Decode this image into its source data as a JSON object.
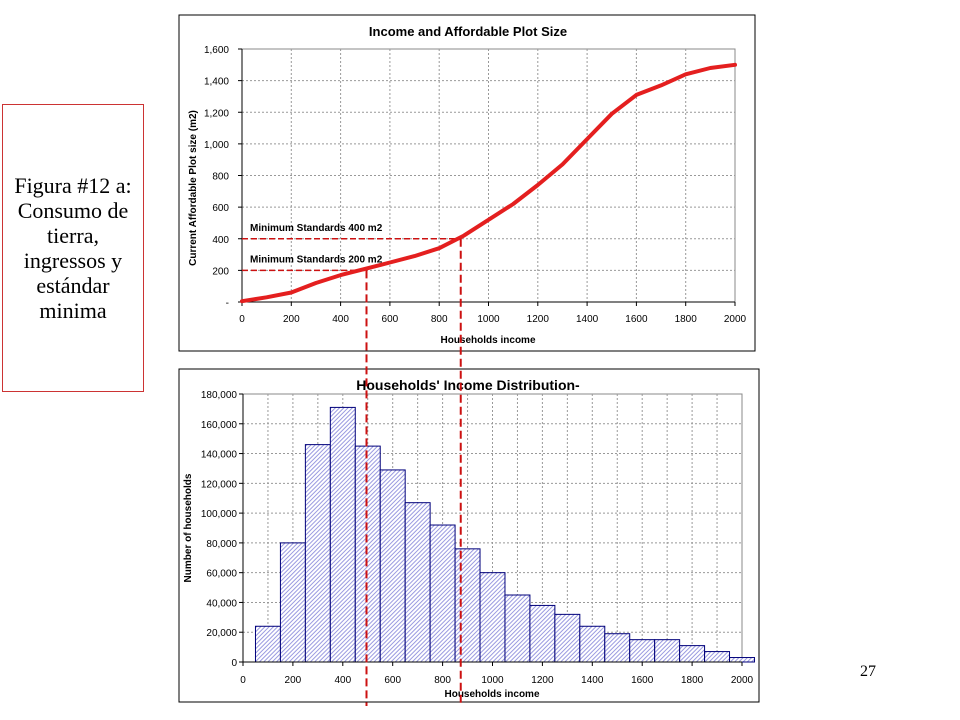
{
  "caption": {
    "text": "Figura #12 a: Consumo de tierra, ingressos y estándar minima"
  },
  "page_number": "27",
  "colors": {
    "curve": "#e41f1f",
    "bars": "#9a9ae0",
    "bar_border": "#00007a",
    "guide": "#cc1111",
    "plot_bg": "#ffffff",
    "grid": "#999999"
  },
  "chart_data": [
    {
      "type": "line",
      "title": "Income and Affordable  Plot Size",
      "xlabel": "Households income",
      "ylabel": "Current Affordable Plot size (m2)",
      "xlim": [
        0,
        2000
      ],
      "ylim": [
        0,
        1600
      ],
      "x_ticks": [
        "0",
        "200",
        "400",
        "600",
        "800",
        "1000",
        "1200",
        "1400",
        "1600",
        "1800",
        "2000"
      ],
      "y_ticks": [
        "-",
        "200",
        "400",
        "600",
        "800",
        "1,000",
        "1,200",
        "1,400",
        "1,600"
      ],
      "grid": true,
      "series": [
        {
          "x": [
            0,
            100,
            200,
            300,
            400,
            500,
            600,
            700,
            800,
            900,
            1000,
            1100,
            1200,
            1300,
            1400,
            1500,
            1600,
            1700,
            1800,
            1900,
            2000
          ],
          "y": [
            5,
            30,
            60,
            120,
            170,
            210,
            250,
            290,
            340,
            420,
            520,
            620,
            740,
            870,
            1030,
            1190,
            1310,
            1370,
            1440,
            1480,
            1500
          ]
        }
      ],
      "annotations": [
        {
          "text": "Minimum Standards 400 m2",
          "level": 400,
          "income": 880
        },
        {
          "text": "Minimum Standards 200 m2",
          "level": 200,
          "income": 500
        }
      ]
    },
    {
      "type": "bar",
      "title": "Households' Income Distribution-",
      "xlabel": "Households income",
      "ylabel": "Number of households",
      "xlim": [
        0,
        2000
      ],
      "ylim": [
        0,
        180000
      ],
      "x_ticks": [
        "0",
        "200",
        "400",
        "600",
        "800",
        "1000",
        "1200",
        "1400",
        "1600",
        "1800",
        "2000"
      ],
      "y_ticks": [
        "0",
        "20,000",
        "40,000",
        "60,000",
        "80,000",
        "100,000",
        "120,000",
        "140,000",
        "160,000",
        "180,000"
      ],
      "grid": true,
      "bins": [
        [
          50,
          150
        ],
        [
          150,
          250
        ],
        [
          250,
          350
        ],
        [
          350,
          450
        ],
        [
          450,
          550
        ],
        [
          550,
          650
        ],
        [
          650,
          750
        ],
        [
          750,
          850
        ],
        [
          850,
          950
        ],
        [
          950,
          1050
        ],
        [
          1050,
          1150
        ],
        [
          1150,
          1250
        ],
        [
          1250,
          1350
        ],
        [
          1350,
          1450
        ],
        [
          1450,
          1550
        ],
        [
          1550,
          1650
        ],
        [
          1650,
          1750
        ],
        [
          1750,
          1850
        ],
        [
          1850,
          1950
        ],
        [
          1950,
          2050
        ]
      ],
      "values": [
        24000,
        80000,
        146000,
        171000,
        145000,
        129000,
        107000,
        92000,
        76000,
        60000,
        45000,
        38000,
        32000,
        24000,
        19000,
        15000,
        15000,
        11000,
        7000,
        3000
      ]
    }
  ]
}
